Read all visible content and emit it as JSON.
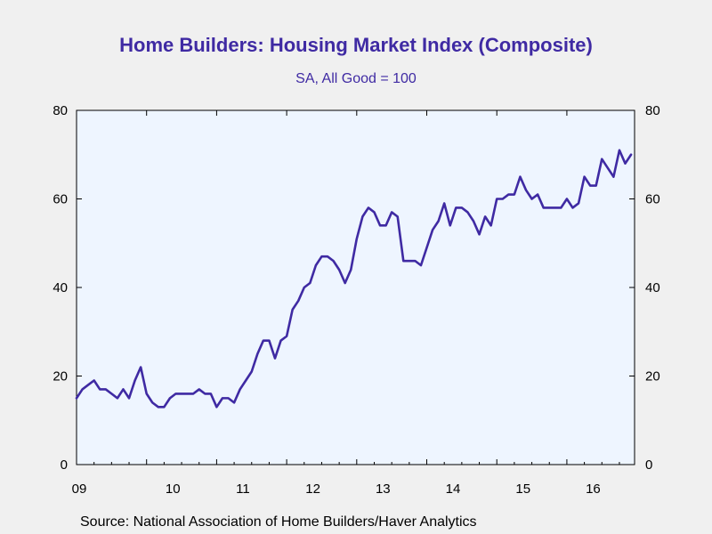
{
  "header": {
    "title": "Home Builders: Housing Market Index (Composite)",
    "subtitle": "SA, All Good = 100"
  },
  "footer": {
    "source": "Source:  National Association of Home Builders/Haver Analytics"
  },
  "colors": {
    "line": "#3f2aa3",
    "title": "#3f2aa3",
    "plot_background": "#eef5ff",
    "page_background": "#f0f0f0"
  },
  "chart_data": {
    "type": "line",
    "title": "Home Builders: Housing Market Index (Composite)",
    "subtitle": "SA, All Good = 100",
    "xlabel": "",
    "ylabel": "",
    "ylim": [
      0,
      80
    ],
    "yticks": [
      0,
      20,
      40,
      60,
      80
    ],
    "y_axis_sides": [
      "left",
      "right"
    ],
    "xlim": [
      "2009-01",
      "2016-12"
    ],
    "x_tick_labels": [
      "09",
      "10",
      "11",
      "12",
      "13",
      "14",
      "15",
      "16"
    ],
    "grid": false,
    "legend": "none",
    "series": [
      {
        "x": [
          "2009-01",
          "2009-02",
          "2009-03",
          "2009-04",
          "2009-05",
          "2009-06",
          "2009-07",
          "2009-08",
          "2009-09",
          "2009-10",
          "2009-11",
          "2009-12",
          "2010-01",
          "2010-02",
          "2010-03",
          "2010-04",
          "2010-05",
          "2010-06",
          "2010-07",
          "2010-08",
          "2010-09",
          "2010-10",
          "2010-11",
          "2010-12",
          "2011-01",
          "2011-02",
          "2011-03",
          "2011-04",
          "2011-05",
          "2011-06",
          "2011-07",
          "2011-08",
          "2011-09",
          "2011-10",
          "2011-11",
          "2011-12",
          "2012-01",
          "2012-02",
          "2012-03",
          "2012-04",
          "2012-05",
          "2012-06",
          "2012-07",
          "2012-08",
          "2012-09",
          "2012-10",
          "2012-11",
          "2012-12",
          "2013-01",
          "2013-02",
          "2013-03",
          "2013-04",
          "2013-05",
          "2013-06",
          "2013-07",
          "2013-08",
          "2013-09",
          "2013-10",
          "2013-11",
          "2013-12",
          "2014-01",
          "2014-02",
          "2014-03",
          "2014-04",
          "2014-05",
          "2014-06",
          "2014-07",
          "2014-08",
          "2014-09",
          "2014-10",
          "2014-11",
          "2014-12",
          "2015-01",
          "2015-02",
          "2015-03",
          "2015-04",
          "2015-05",
          "2015-06",
          "2015-07",
          "2015-08",
          "2015-09",
          "2015-10",
          "2015-11",
          "2015-12",
          "2016-01",
          "2016-02",
          "2016-03",
          "2016-04",
          "2016-05",
          "2016-06",
          "2016-07",
          "2016-08",
          "2016-09",
          "2016-10",
          "2016-11",
          "2016-12"
        ],
        "values": [
          15,
          17,
          18,
          19,
          17,
          17,
          16,
          15,
          17,
          15,
          19,
          22,
          16,
          14,
          13,
          13,
          15,
          16,
          16,
          16,
          16,
          17,
          16,
          16,
          13,
          15,
          15,
          14,
          17,
          19,
          21,
          25,
          28,
          28,
          24,
          28,
          29,
          35,
          37,
          40,
          41,
          45,
          47,
          47,
          46,
          44,
          41,
          44,
          51,
          56,
          58,
          57,
          54,
          54,
          57,
          56,
          46,
          46,
          46,
          45,
          49,
          53,
          55,
          59,
          54,
          58,
          58,
          57,
          55,
          52,
          56,
          54,
          60,
          60,
          61,
          61,
          65,
          62,
          60,
          61,
          58,
          58,
          58,
          58,
          60,
          58,
          59,
          65,
          63,
          63,
          69,
          67,
          65,
          71,
          68,
          70
        ]
      }
    ]
  }
}
